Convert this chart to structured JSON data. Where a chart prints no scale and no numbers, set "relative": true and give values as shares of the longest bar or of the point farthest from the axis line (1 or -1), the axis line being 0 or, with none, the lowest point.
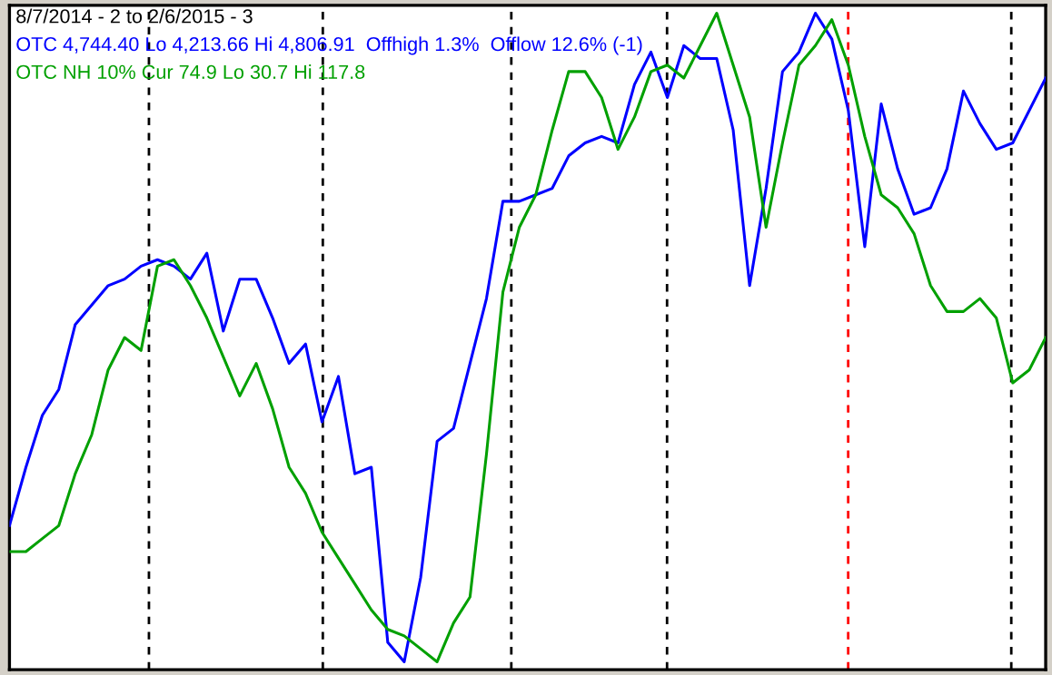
{
  "chart_data": {
    "type": "line",
    "title": "8/7/2014 - 2 to 2/6/2015 - 3",
    "relative": true,
    "tick_labels": false,
    "legend": false,
    "grid": "x",
    "categories": [
      null,
      null,
      null,
      null,
      null,
      null,
      null,
      null,
      null,
      null,
      null,
      null,
      null,
      null,
      null,
      null,
      null,
      null,
      null,
      null,
      null,
      null,
      null,
      null,
      null,
      null,
      null,
      null,
      null,
      null,
      null,
      null,
      null,
      null,
      null,
      null,
      null,
      null,
      null,
      null,
      null,
      null,
      null,
      null,
      null,
      null,
      null,
      null,
      null,
      null,
      null,
      null,
      null,
      null,
      null,
      null,
      null,
      null,
      null,
      null,
      null,
      null,
      null,
      null
    ],
    "series": [
      {
        "name": "OTC 4,744.40 Lo 4,213.66 Hi 4,806.91  Offhigh 1.3%  Offlow 12.6% (-1)",
        "color": "#0000ff",
        "values": [
          0.21,
          0.3,
          0.38,
          0.42,
          0.52,
          0.55,
          0.58,
          0.59,
          0.61,
          0.62,
          0.61,
          0.59,
          0.63,
          0.51,
          0.59,
          0.59,
          0.53,
          0.46,
          0.49,
          0.37,
          0.44,
          0.29,
          0.3,
          0.03,
          0,
          0.13,
          0.34,
          0.36,
          0.46,
          0.56,
          0.71,
          0.71,
          0.72,
          0.73,
          0.78,
          0.8,
          0.81,
          0.8,
          0.89,
          0.94,
          0.87,
          0.95,
          0.93,
          0.93,
          0.82,
          0.58,
          0.73,
          0.91,
          0.94,
          1.0,
          0.96,
          0.85,
          0.64,
          0.86,
          0.76,
          0.69,
          0.7,
          0.76,
          0.88,
          0.83,
          0.79,
          0.8,
          0.85,
          0.9
        ]
      },
      {
        "name": "OTC NH 10% Cur 74.9 Lo 30.7 Hi 117.8",
        "color": "#00a000",
        "values": [
          0.17,
          0.17,
          0.19,
          0.21,
          0.29,
          0.35,
          0.45,
          0.5,
          0.48,
          0.61,
          0.62,
          0.58,
          0.53,
          0.47,
          0.41,
          0.46,
          0.39,
          0.3,
          0.26,
          0.2,
          0.16,
          0.12,
          0.08,
          0.05,
          0.04,
          0.02,
          0,
          0.06,
          0.1,
          0.32,
          0.57,
          0.67,
          0.72,
          0.82,
          0.91,
          0.91,
          0.87,
          0.79,
          0.84,
          0.91,
          0.92,
          0.9,
          0.95,
          1.0,
          0.92,
          0.84,
          0.67,
          0.8,
          0.92,
          0.95,
          0.99,
          0.92,
          0.81,
          0.72,
          0.7,
          0.66,
          0.58,
          0.54,
          0.54,
          0.56,
          0.53,
          0.43,
          0.45,
          0.5
        ]
      }
    ]
  }
}
